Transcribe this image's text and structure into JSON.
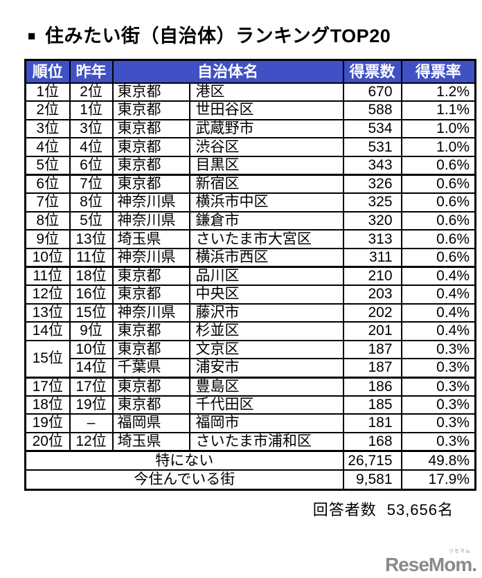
{
  "page": {
    "title_bullet": "■",
    "logo_text": "ReseMom.",
    "logo_ruby": "リセマム"
  },
  "colors": {
    "header_bg": "#3F51C4",
    "header_text": "#FFFFFF",
    "border": "#000000",
    "logo": "#8A8A8A"
  },
  "chart_data": {
    "type": "table",
    "title": "住みたい街（自治体）ランキングTOP20",
    "headers": [
      "順位",
      "昨年",
      "自治体名",
      "得票数",
      "得票率"
    ],
    "rows": [
      {
        "rank": "1位",
        "last_year": "2位",
        "prefecture": "東京都",
        "city": "港区",
        "votes": "670",
        "rate": "1.2%"
      },
      {
        "rank": "2位",
        "last_year": "1位",
        "prefecture": "東京都",
        "city": "世田谷区",
        "votes": "588",
        "rate": "1.1%"
      },
      {
        "rank": "3位",
        "last_year": "3位",
        "prefecture": "東京都",
        "city": "武蔵野市",
        "votes": "534",
        "rate": "1.0%"
      },
      {
        "rank": "4位",
        "last_year": "4位",
        "prefecture": "東京都",
        "city": "渋谷区",
        "votes": "531",
        "rate": "1.0%"
      },
      {
        "rank": "5位",
        "last_year": "6位",
        "prefecture": "東京都",
        "city": "目黒区",
        "votes": "343",
        "rate": "0.6%",
        "group_end": true
      },
      {
        "rank": "6位",
        "last_year": "7位",
        "prefecture": "東京都",
        "city": "新宿区",
        "votes": "326",
        "rate": "0.6%"
      },
      {
        "rank": "7位",
        "last_year": "8位",
        "prefecture": "神奈川県",
        "city": "横浜市中区",
        "votes": "325",
        "rate": "0.6%"
      },
      {
        "rank": "8位",
        "last_year": "5位",
        "prefecture": "神奈川県",
        "city": "鎌倉市",
        "votes": "320",
        "rate": "0.6%"
      },
      {
        "rank": "9位",
        "last_year": "13位",
        "prefecture": "埼玉県",
        "city": "さいたま市大宮区",
        "votes": "313",
        "rate": "0.6%"
      },
      {
        "rank": "10位",
        "last_year": "11位",
        "prefecture": "神奈川県",
        "city": "横浜市西区",
        "votes": "311",
        "rate": "0.6%",
        "group_end": true
      },
      {
        "rank": "11位",
        "last_year": "18位",
        "prefecture": "東京都",
        "city": "品川区",
        "votes": "210",
        "rate": "0.4%"
      },
      {
        "rank": "12位",
        "last_year": "16位",
        "prefecture": "東京都",
        "city": "中央区",
        "votes": "203",
        "rate": "0.4%"
      },
      {
        "rank": "13位",
        "last_year": "15位",
        "prefecture": "神奈川県",
        "city": "藤沢市",
        "votes": "202",
        "rate": "0.4%"
      },
      {
        "rank": "14位",
        "last_year": "9位",
        "prefecture": "東京都",
        "city": "杉並区",
        "votes": "201",
        "rate": "0.4%"
      },
      {
        "rank": "15位",
        "rank_rowspan": 2,
        "last_year": "10位",
        "prefecture": "東京都",
        "city": "文京区",
        "votes": "187",
        "rate": "0.3%"
      },
      {
        "rank": null,
        "last_year": "14位",
        "prefecture": "千葉県",
        "city": "浦安市",
        "votes": "187",
        "rate": "0.3%",
        "group_end": true
      },
      {
        "rank": "17位",
        "last_year": "17位",
        "prefecture": "東京都",
        "city": "豊島区",
        "votes": "186",
        "rate": "0.3%"
      },
      {
        "rank": "18位",
        "last_year": "19位",
        "prefecture": "東京都",
        "city": "千代田区",
        "votes": "185",
        "rate": "0.3%"
      },
      {
        "rank": "19位",
        "last_year": "–",
        "prefecture": "福岡県",
        "city": "福岡市",
        "votes": "181",
        "rate": "0.3%"
      },
      {
        "rank": "20位",
        "last_year": "12位",
        "prefecture": "埼玉県",
        "city": "さいたま市浦和区",
        "votes": "168",
        "rate": "0.3%",
        "group_end": true
      }
    ],
    "summary_rows": [
      {
        "label": "特にない",
        "votes": "26,715",
        "rate": "49.8%"
      },
      {
        "label": "今住んでいる街",
        "votes": "9,581",
        "rate": "17.9%"
      }
    ],
    "respondents_label": "回答者数",
    "respondents_value": "53,656名"
  }
}
